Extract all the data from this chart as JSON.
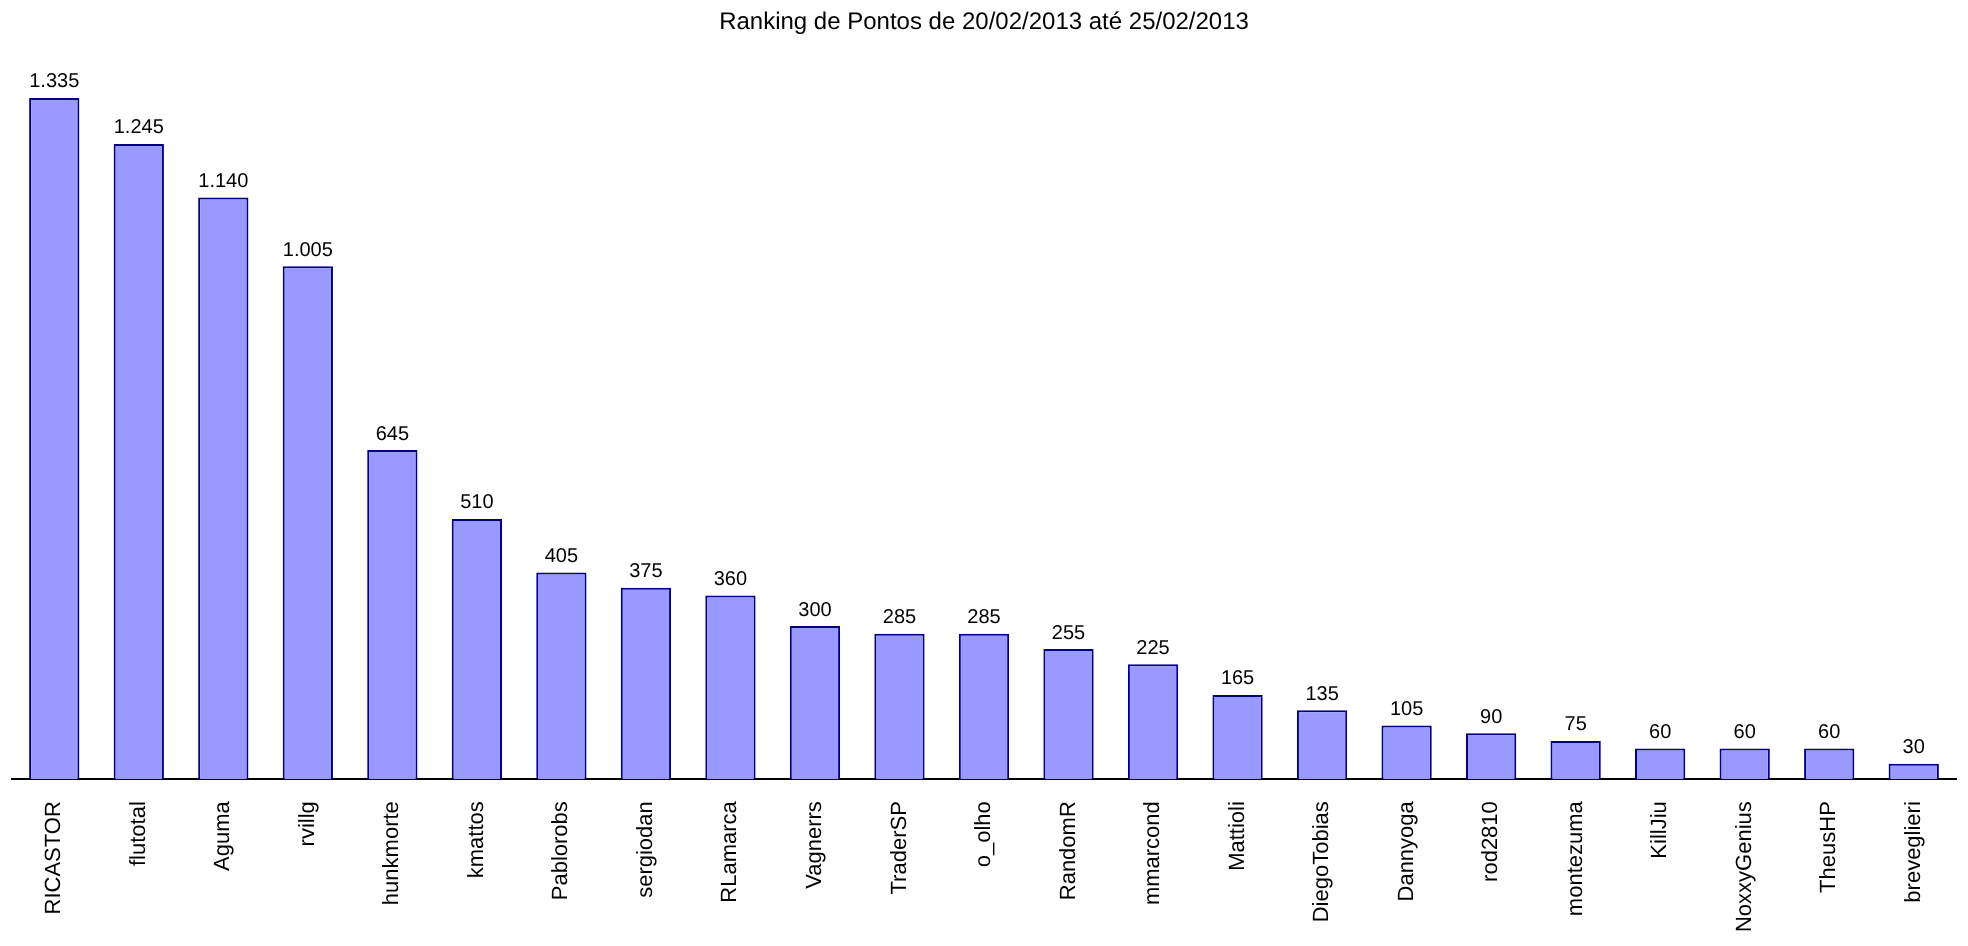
{
  "chart_data": {
    "type": "bar",
    "title": "Ranking de Pontos de 20/02/2013 até 25/02/2013",
    "categories": [
      "RICASTOR",
      "flutotal",
      "Aguma",
      "rvillg",
      "hunkmorte",
      "kmattos",
      "Pablorobs",
      "sergiodan",
      "RLamarca",
      "Vagnerrs",
      "TraderSP",
      "o_olho",
      "RandomR",
      "mmarcond",
      "Mattioli",
      "DiegoTobias",
      "Dannyoga",
      "rod2810",
      "montezuma",
      "KillJiu",
      "NoxxyGenius",
      "TheusHP",
      "breveglieri"
    ],
    "values": [
      1335,
      1245,
      1140,
      1005,
      645,
      510,
      405,
      375,
      360,
      300,
      285,
      285,
      255,
      225,
      165,
      135,
      105,
      90,
      75,
      60,
      60,
      60,
      30
    ],
    "value_labels": [
      "1.335",
      "1.245",
      "1.140",
      "1.005",
      "645",
      "510",
      "405",
      "375",
      "360",
      "300",
      "285",
      "285",
      "255",
      "225",
      "165",
      "135",
      "105",
      "90",
      "75",
      "60",
      "60",
      "60",
      "30"
    ],
    "color": "#9999ff",
    "grid": false,
    "legend": false
  }
}
